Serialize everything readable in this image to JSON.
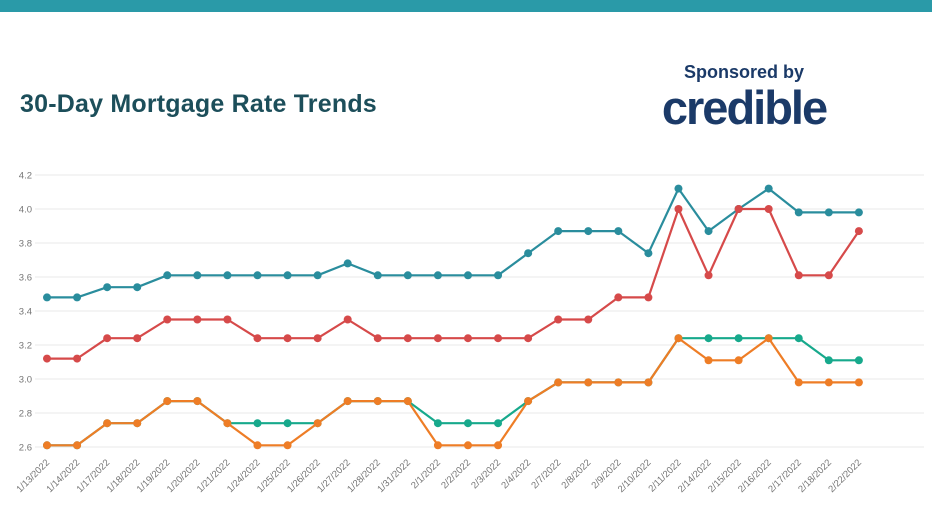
{
  "page": {
    "top_bar_color": "#2a9aa8",
    "background": "#ffffff"
  },
  "header": {
    "title": "30-Day Mortgage Rate Trends",
    "title_color": "#1c4e5a"
  },
  "sponsor": {
    "label": "Sponsored by",
    "brand": "credible",
    "color": "#1b3a68"
  },
  "chart_data": {
    "type": "line",
    "title": "30-Day Mortgage Rate Trends",
    "xlabel": "",
    "ylabel": "",
    "ylim": [
      2.6,
      4.2
    ],
    "yticks": [
      2.6,
      2.8,
      3.0,
      3.2,
      3.4,
      3.6,
      3.8,
      4.0,
      4.2
    ],
    "grid": true,
    "legend": false,
    "grid_color": "#e9e9e9",
    "tick_color": "#757575",
    "x": [
      "1/13/2022",
      "1/14/2022",
      "1/17/2022",
      "1/18/2022",
      "1/19/2022",
      "1/20/2022",
      "1/21/2022",
      "1/24/2022",
      "1/25/2022",
      "1/26/2022",
      "1/27/2022",
      "1/28/2022",
      "1/31/2022",
      "2/1/2022",
      "2/2/2022",
      "2/3/2022",
      "2/4/2022",
      "2/7/2022",
      "2/8/2022",
      "2/9/2022",
      "2/10/2022",
      "2/11/2022",
      "2/14/2022",
      "2/15/2022",
      "2/16/2022",
      "2/17/2022",
      "2/18/2022",
      "2/22/2022"
    ],
    "series": [
      {
        "name": "teal-rate",
        "color": "#2a8d9d",
        "values": [
          3.48,
          3.48,
          3.54,
          3.54,
          3.61,
          3.61,
          3.61,
          3.61,
          3.61,
          3.61,
          3.68,
          3.61,
          3.61,
          3.61,
          3.61,
          3.61,
          3.74,
          3.87,
          3.87,
          3.87,
          3.74,
          4.12,
          3.87,
          4.0,
          4.12,
          3.98,
          3.98,
          3.98
        ]
      },
      {
        "name": "red-rate",
        "color": "#d64a4a",
        "values": [
          3.12,
          3.12,
          3.24,
          3.24,
          3.35,
          3.35,
          3.35,
          3.24,
          3.24,
          3.24,
          3.35,
          3.24,
          3.24,
          3.24,
          3.24,
          3.24,
          3.24,
          3.35,
          3.35,
          3.48,
          3.48,
          4.0,
          3.61,
          4.0,
          4.0,
          3.61,
          3.61,
          3.87
        ]
      },
      {
        "name": "green-rate",
        "color": "#17a98c",
        "values": [
          2.61,
          2.61,
          2.74,
          2.74,
          2.87,
          2.87,
          2.74,
          2.74,
          2.74,
          2.74,
          2.87,
          2.87,
          2.87,
          2.74,
          2.74,
          2.74,
          2.87,
          2.98,
          2.98,
          2.98,
          2.98,
          3.24,
          3.24,
          3.24,
          3.24,
          3.24,
          3.11,
          3.11
        ]
      },
      {
        "name": "orange-rate",
        "color": "#ee7d26",
        "values": [
          2.61,
          2.61,
          2.74,
          2.74,
          2.87,
          2.87,
          2.74,
          2.61,
          2.61,
          2.74,
          2.87,
          2.87,
          2.87,
          2.61,
          2.61,
          2.61,
          2.87,
          2.98,
          2.98,
          2.98,
          2.98,
          3.24,
          3.11,
          3.11,
          3.24,
          2.98,
          2.98,
          2.98
        ]
      }
    ]
  }
}
